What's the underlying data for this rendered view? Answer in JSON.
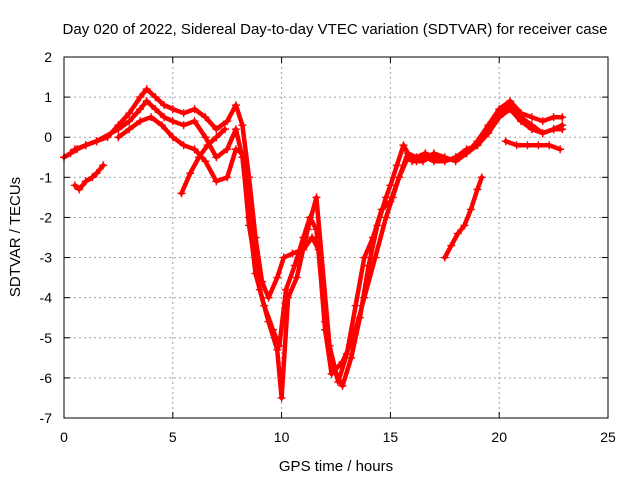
{
  "chart_data": {
    "type": "scatter",
    "title": "Day 020 of 2022, Sidereal Day-to-day VTEC variation (SDTVAR) for receiver case",
    "xlabel": "GPS time / hours",
    "ylabel": "SDTVAR / TECUs",
    "xlim": [
      0,
      25
    ],
    "ylim": [
      -7,
      2
    ],
    "xticks": [
      0,
      5,
      10,
      15,
      20,
      25
    ],
    "yticks": [
      -7,
      -6,
      -5,
      -4,
      -3,
      -2,
      -1,
      0,
      1,
      2
    ],
    "grid": true,
    "legend": "none",
    "marker": "+",
    "color": "#ff0000",
    "series": [
      {
        "x": [
          0.0,
          0.3,
          0.6,
          1.0,
          1.5,
          2.0,
          2.5,
          3.0,
          3.5,
          3.8,
          4.2,
          4.6,
          5.0,
          5.5,
          6.0,
          6.5,
          7.0,
          7.5,
          7.9,
          8.2,
          8.5,
          8.8,
          9.1,
          9.4,
          9.8,
          10.1,
          10.5,
          11.0,
          11.4,
          11.7,
          12.0,
          12.3,
          12.8,
          13.3,
          13.8,
          14.3,
          14.8,
          15.1,
          15.4,
          15.8,
          16.2,
          16.6,
          17.0,
          17.5,
          18.0,
          18.5,
          19.0,
          19.5,
          20.0,
          20.5,
          21.0,
          21.5,
          22.0,
          22.5,
          22.9
        ],
        "y": [
          -0.5,
          -0.4,
          -0.3,
          -0.2,
          -0.1,
          0.0,
          0.3,
          0.6,
          1.0,
          1.2,
          1.0,
          0.8,
          0.7,
          0.6,
          0.7,
          0.5,
          0.2,
          0.4,
          0.8,
          0.3,
          -1.0,
          -2.5,
          -3.6,
          -4.0,
          -3.5,
          -3.0,
          -2.9,
          -2.8,
          -2.5,
          -2.8,
          -4.8,
          -5.9,
          -5.6,
          -5.0,
          -4.0,
          -3.0,
          -2.0,
          -1.5,
          -1.0,
          -0.4,
          -0.5,
          -0.4,
          -0.5,
          -0.6,
          -0.5,
          -0.4,
          -0.1,
          0.3,
          0.7,
          0.9,
          0.6,
          0.5,
          0.4,
          0.5,
          0.5
        ]
      },
      {
        "x": [
          0.5,
          1.0,
          1.5,
          2.5,
          3.0,
          3.5,
          3.8,
          4.2,
          4.6,
          5.0,
          5.5,
          6.0,
          6.5,
          7.0,
          7.5,
          7.9,
          8.2,
          8.5,
          8.8,
          9.2,
          9.6,
          9.9,
          10.2,
          10.6,
          11.0,
          11.3,
          11.6,
          12.0,
          12.4,
          12.8,
          13.2,
          13.6,
          14.0,
          14.4,
          14.8,
          15.0,
          15.3,
          15.6,
          16.0,
          16.5,
          17.0,
          17.5,
          18.0,
          18.5,
          19.0,
          19.5,
          20.0,
          20.5,
          21.0,
          21.5,
          22.0,
          22.5,
          22.9
        ],
        "y": [
          -0.3,
          -0.2,
          -0.1,
          0.2,
          0.4,
          0.7,
          0.9,
          0.7,
          0.5,
          0.4,
          0.3,
          0.4,
          0.0,
          -0.5,
          -0.3,
          0.2,
          -0.5,
          -2.0,
          -3.4,
          -4.2,
          -4.8,
          -5.2,
          -3.8,
          -3.2,
          -2.5,
          -2.0,
          -2.3,
          -4.6,
          -5.8,
          -6.2,
          -5.5,
          -4.5,
          -3.2,
          -2.2,
          -1.5,
          -1.2,
          -0.7,
          -0.2,
          -0.6,
          -0.6,
          -0.4,
          -0.5,
          -0.6,
          -0.4,
          -0.2,
          0.2,
          0.6,
          0.8,
          0.5,
          0.3,
          0.1,
          0.2,
          0.2
        ]
      },
      {
        "x": [
          2.5,
          3.0,
          3.5,
          4.0,
          4.5,
          5.0,
          5.5,
          6.0,
          6.5,
          7.0,
          7.5,
          7.9,
          8.2,
          8.5,
          9.0,
          9.4,
          9.8,
          10.0,
          10.3,
          10.7,
          11.2,
          11.6,
          12.2,
          12.6,
          13.0,
          13.4,
          13.8,
          14.2,
          14.6,
          15.0,
          15.4,
          15.8,
          16.2,
          16.6,
          17.0,
          17.5,
          18.0,
          18.5,
          19.0,
          19.5,
          20.0,
          20.5,
          21.0,
          21.5,
          22.0,
          22.5,
          22.9
        ],
        "y": [
          0.0,
          0.2,
          0.4,
          0.5,
          0.3,
          0.0,
          -0.2,
          -0.3,
          -0.6,
          -1.1,
          -1.0,
          -0.3,
          -0.4,
          -2.2,
          -3.8,
          -4.6,
          -5.3,
          -6.5,
          -4.0,
          -3.5,
          -2.3,
          -1.5,
          -5.2,
          -6.1,
          -5.4,
          -4.2,
          -3.0,
          -2.5,
          -1.8,
          -1.6,
          -1.0,
          -0.5,
          -0.6,
          -0.5,
          -0.6,
          -0.6,
          -0.5,
          -0.3,
          -0.2,
          0.1,
          0.5,
          0.7,
          0.4,
          0.2,
          0.1,
          0.2,
          0.3
        ]
      },
      {
        "x": [
          0.5,
          0.7,
          1.0,
          1.3,
          1.5,
          1.8
        ],
        "y": [
          -1.2,
          -1.3,
          -1.1,
          -1.0,
          -0.9,
          -0.7
        ]
      },
      {
        "x": [
          5.4,
          5.8,
          6.2,
          6.6,
          7.0,
          7.4
        ],
        "y": [
          -1.4,
          -0.9,
          -0.5,
          -0.2,
          0.0,
          0.2
        ]
      },
      {
        "x": [
          17.5,
          17.8,
          18.1,
          18.4,
          18.7,
          19.0,
          19.2
        ],
        "y": [
          -3.0,
          -2.7,
          -2.4,
          -2.2,
          -1.8,
          -1.3,
          -1.0
        ]
      },
      {
        "x": [
          20.3,
          20.8,
          21.3,
          21.8,
          22.3,
          22.8
        ],
        "y": [
          -0.1,
          -0.2,
          -0.2,
          -0.2,
          -0.2,
          -0.3
        ]
      }
    ]
  }
}
